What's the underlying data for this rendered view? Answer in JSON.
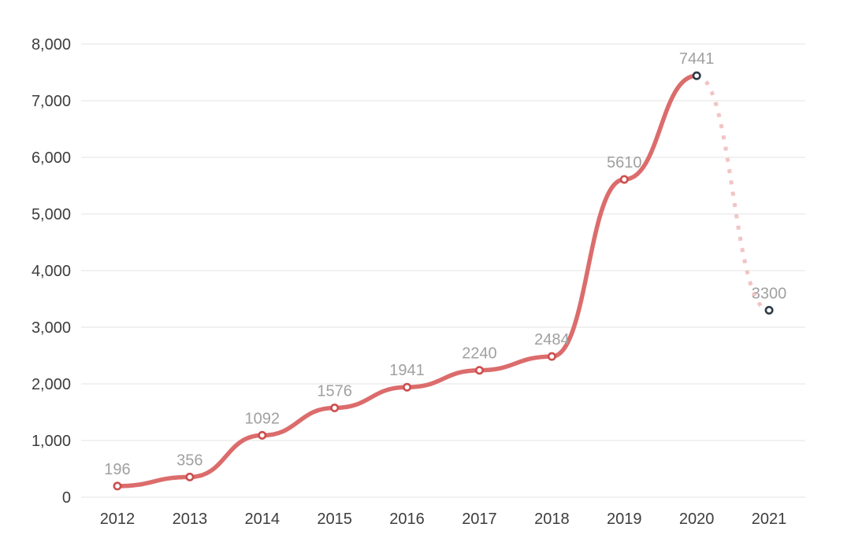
{
  "chart_data": {
    "type": "line",
    "title": "",
    "xlabel": "",
    "ylabel": "",
    "categories": [
      "2012",
      "2013",
      "2014",
      "2015",
      "2016",
      "2017",
      "2018",
      "2019",
      "2020",
      "2021"
    ],
    "values": [
      196,
      356,
      1092,
      1576,
      1941,
      2240,
      2484,
      5610,
      7441,
      3300
    ],
    "data_labels": [
      "196",
      "356",
      "1092",
      "1576",
      "1941",
      "2240",
      "2484",
      "5610",
      "7441",
      "3300"
    ],
    "ylim": [
      0,
      8000
    ],
    "y_tick_values": [
      0,
      1000,
      2000,
      3000,
      4000,
      5000,
      6000,
      7000,
      8000
    ],
    "y_tick_labels": [
      "0",
      "1,000",
      "2,000",
      "3,000",
      "4,000",
      "5,000",
      "6,000",
      "7,000",
      "8,000"
    ],
    "grid": "horizontal",
    "legend": "none",
    "curve_style": "smooth-s-curve",
    "solid_segment_end_category": "2020",
    "dashed_segment": [
      "2020",
      "2021"
    ],
    "dark_point_categories": [
      "2020",
      "2021"
    ],
    "colors": {
      "line_solid": "#dc6c6c",
      "line_dashed": "#f2c4c4",
      "point_ring_red": "#cc4f4f",
      "point_ring_dark": "#2d3b47",
      "point_fill": "#ffffff",
      "data_label": "#a0a0a0",
      "axis_label": "#3d3d3d",
      "gridline": "#f1f1f1",
      "background": "#ffffff"
    }
  }
}
